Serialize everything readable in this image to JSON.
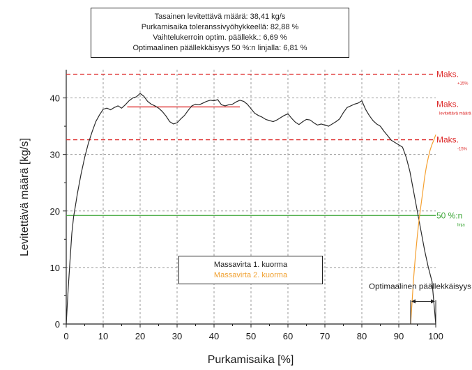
{
  "info_box": {
    "lines": [
      "Tasainen levitettävä määrä: 38,41 kg/s",
      "Purkamisaika toleranssivyöhykkeellä: 82,88 %",
      "Vaihtelukerroin optim. päällekk.: 6,69 %",
      "Optimaalinen päällekkäisyys 50 %:n linjalla: 6,81 %"
    ]
  },
  "colors": {
    "series_1": "#2a2a2a",
    "series_2": "#f5a030",
    "reference_max": "#dd2a2a",
    "reference_50": "#3aa535",
    "grid": "#9a9a9a"
  },
  "chart_data": {
    "type": "line",
    "xlabel": "Purkamisaika [%]",
    "ylabel": "Levitettävä määrä [kg/s]",
    "xlim": [
      0,
      100
    ],
    "ylim": [
      0,
      45
    ],
    "x_ticks": [
      0,
      10,
      20,
      30,
      40,
      50,
      60,
      70,
      80,
      90,
      100
    ],
    "y_ticks": [
      0,
      10,
      20,
      30,
      40
    ],
    "grid": true,
    "legend_position": "bottom-center",
    "series": [
      {
        "name": "Massavirta 1. kuorma",
        "color": "#2a2a2a",
        "x": [
          0,
          0.5,
          1,
          1.5,
          2,
          2.5,
          3,
          4,
          5,
          6,
          7,
          8,
          9,
          10,
          11,
          12,
          13,
          14,
          15,
          16,
          17,
          18,
          19,
          20,
          21,
          22,
          23,
          24,
          25,
          26,
          27,
          28,
          29,
          30,
          31,
          32,
          33,
          34,
          35,
          36,
          37,
          38,
          39,
          40,
          41,
          42,
          43,
          44,
          45,
          46,
          47,
          48,
          49,
          50,
          51,
          52,
          53,
          54,
          55,
          56,
          57,
          58,
          59,
          60,
          61,
          62,
          63,
          64,
          65,
          66,
          67,
          68,
          69,
          70,
          71,
          72,
          73,
          74,
          75,
          76,
          77,
          78,
          79,
          80,
          81,
          82,
          83,
          84,
          85,
          86,
          87,
          88,
          89,
          90,
          91,
          92,
          93,
          94,
          95,
          96,
          97,
          98,
          99,
          100
        ],
        "y": [
          0,
          6,
          11,
          16,
          19,
          21,
          23,
          26.5,
          29.5,
          32,
          34,
          35.8,
          37,
          38,
          38.2,
          37.9,
          38.3,
          38.6,
          38.2,
          38.8,
          39.5,
          40,
          40.2,
          40.8,
          40.3,
          39.4,
          38.9,
          38.6,
          38.2,
          37.6,
          36.8,
          35.8,
          35.4,
          35.6,
          36.3,
          36.9,
          37.8,
          38.6,
          38.9,
          38.8,
          39.1,
          39.4,
          39.6,
          39.5,
          39.7,
          38.8,
          38.6,
          38.8,
          38.9,
          39.3,
          39.6,
          39.4,
          38.9,
          38.1,
          37.3,
          36.9,
          36.6,
          36.2,
          36,
          35.8,
          36.1,
          36.5,
          36.9,
          37.2,
          36.4,
          35.7,
          35.3,
          35.8,
          36.2,
          36.1,
          35.6,
          35.2,
          35.4,
          35.2,
          35,
          35.4,
          35.8,
          36.3,
          37.4,
          38.3,
          38.6,
          38.9,
          39.1,
          39.5,
          38,
          36.9,
          36,
          35.4,
          35,
          34.1,
          33.3,
          32.5,
          32.1,
          31.7,
          31.3,
          29.5,
          27,
          23.5,
          20,
          16.5,
          13,
          10,
          7.5,
          0
        ]
      },
      {
        "name": "Massavirta 2. kuorma",
        "color": "#f5a030",
        "x": [
          93.2,
          93.6,
          94,
          94.5,
          95,
          95.5,
          96,
          96.5,
          97,
          97.5,
          98,
          98.5,
          99,
          99.5,
          100
        ],
        "y": [
          0,
          4,
          8,
          12,
          15.5,
          18.5,
          21,
          23.5,
          26,
          28,
          29.5,
          30.8,
          31.8,
          32.6,
          33.5
        ]
      }
    ],
    "reference_lines": [
      {
        "label": "Maks.",
        "sublabel": "+15%",
        "y": 44.2,
        "color": "#dd2a2a",
        "style": "dashed"
      },
      {
        "label": "Maks.",
        "sublabel": "levitettävä määrä",
        "y": 38.41,
        "x_range": [
          16.5,
          47
        ],
        "color": "#dd2a2a",
        "style": "solid"
      },
      {
        "label": "Maks.",
        "sublabel": "-15%",
        "y": 32.6,
        "color": "#dd2a2a",
        "style": "dashed"
      },
      {
        "label": "50 %:n",
        "sublabel": "linja",
        "y": 19.2,
        "color": "#3aa535",
        "style": "solid"
      }
    ],
    "overlap_annotation": {
      "label": "Optimaalinen päällekkäisyys",
      "x_range": [
        93.2,
        100
      ]
    }
  }
}
